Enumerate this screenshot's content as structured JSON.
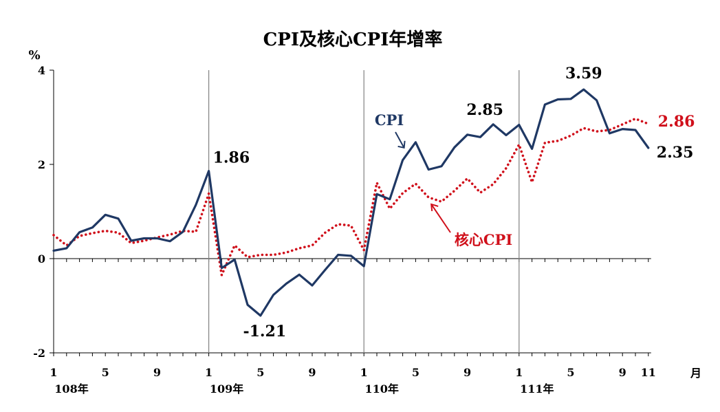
{
  "chart_data": {
    "type": "line",
    "title": "CPI及核心CPI年增率",
    "ylabel": "%",
    "xlabel": "月",
    "ylim": [
      -2,
      4
    ],
    "yticks": [
      "4",
      "2",
      "0",
      "-2"
    ],
    "x_tick_labels": [
      "1",
      "5",
      "9",
      "1",
      "5",
      "9",
      "1",
      "5",
      "9",
      "1",
      "5",
      "9",
      "11"
    ],
    "year_labels": [
      "108年",
      "109年",
      "110年",
      "111年"
    ],
    "series": [
      {
        "name": "CPI",
        "color": "#1f3864",
        "style": "solid",
        "values": [
          0.17,
          0.22,
          0.56,
          0.66,
          0.93,
          0.85,
          0.38,
          0.43,
          0.43,
          0.37,
          0.57,
          1.14,
          1.86,
          -0.2,
          -0.02,
          -0.98,
          -1.21,
          -0.77,
          -0.53,
          -0.34,
          -0.57,
          -0.24,
          0.08,
          0.06,
          -0.16,
          1.37,
          1.26,
          2.09,
          2.47,
          1.89,
          1.96,
          2.36,
          2.63,
          2.58,
          2.85,
          2.62,
          2.84,
          2.33,
          3.27,
          3.38,
          3.39,
          3.59,
          3.36,
          2.66,
          2.75,
          2.73,
          2.35
        ]
      },
      {
        "name": "核心CPI",
        "color": "#d0101b",
        "style": "dotted",
        "values": [
          0.5,
          0.28,
          0.48,
          0.54,
          0.59,
          0.55,
          0.33,
          0.38,
          0.45,
          0.51,
          0.59,
          0.57,
          1.38,
          -0.35,
          0.28,
          0.03,
          0.08,
          0.08,
          0.13,
          0.22,
          0.28,
          0.55,
          0.73,
          0.7,
          0.18,
          1.61,
          1.06,
          1.39,
          1.59,
          1.3,
          1.21,
          1.44,
          1.7,
          1.4,
          1.58,
          1.92,
          2.42,
          1.62,
          2.46,
          2.5,
          2.61,
          2.77,
          2.7,
          2.73,
          2.85,
          2.97,
          2.86
        ]
      }
    ],
    "annotations": [
      {
        "text": "1.86",
        "series": "CPI",
        "index": 12,
        "color": "#000000"
      },
      {
        "text": "-1.21",
        "series": "CPI",
        "index": 16,
        "color": "#000000"
      },
      {
        "text": "2.85",
        "series": "CPI",
        "index": 34,
        "color": "#000000"
      },
      {
        "text": "3.59",
        "series": "CPI",
        "index": 41,
        "color": "#000000"
      },
      {
        "text": "2.86",
        "series": "核心CPI",
        "index": 46,
        "color": "#d0101b"
      },
      {
        "text": "2.35",
        "series": "CPI",
        "index": 46,
        "color": "#000000"
      }
    ],
    "grid": false,
    "legend": "inline labels with arrows"
  }
}
